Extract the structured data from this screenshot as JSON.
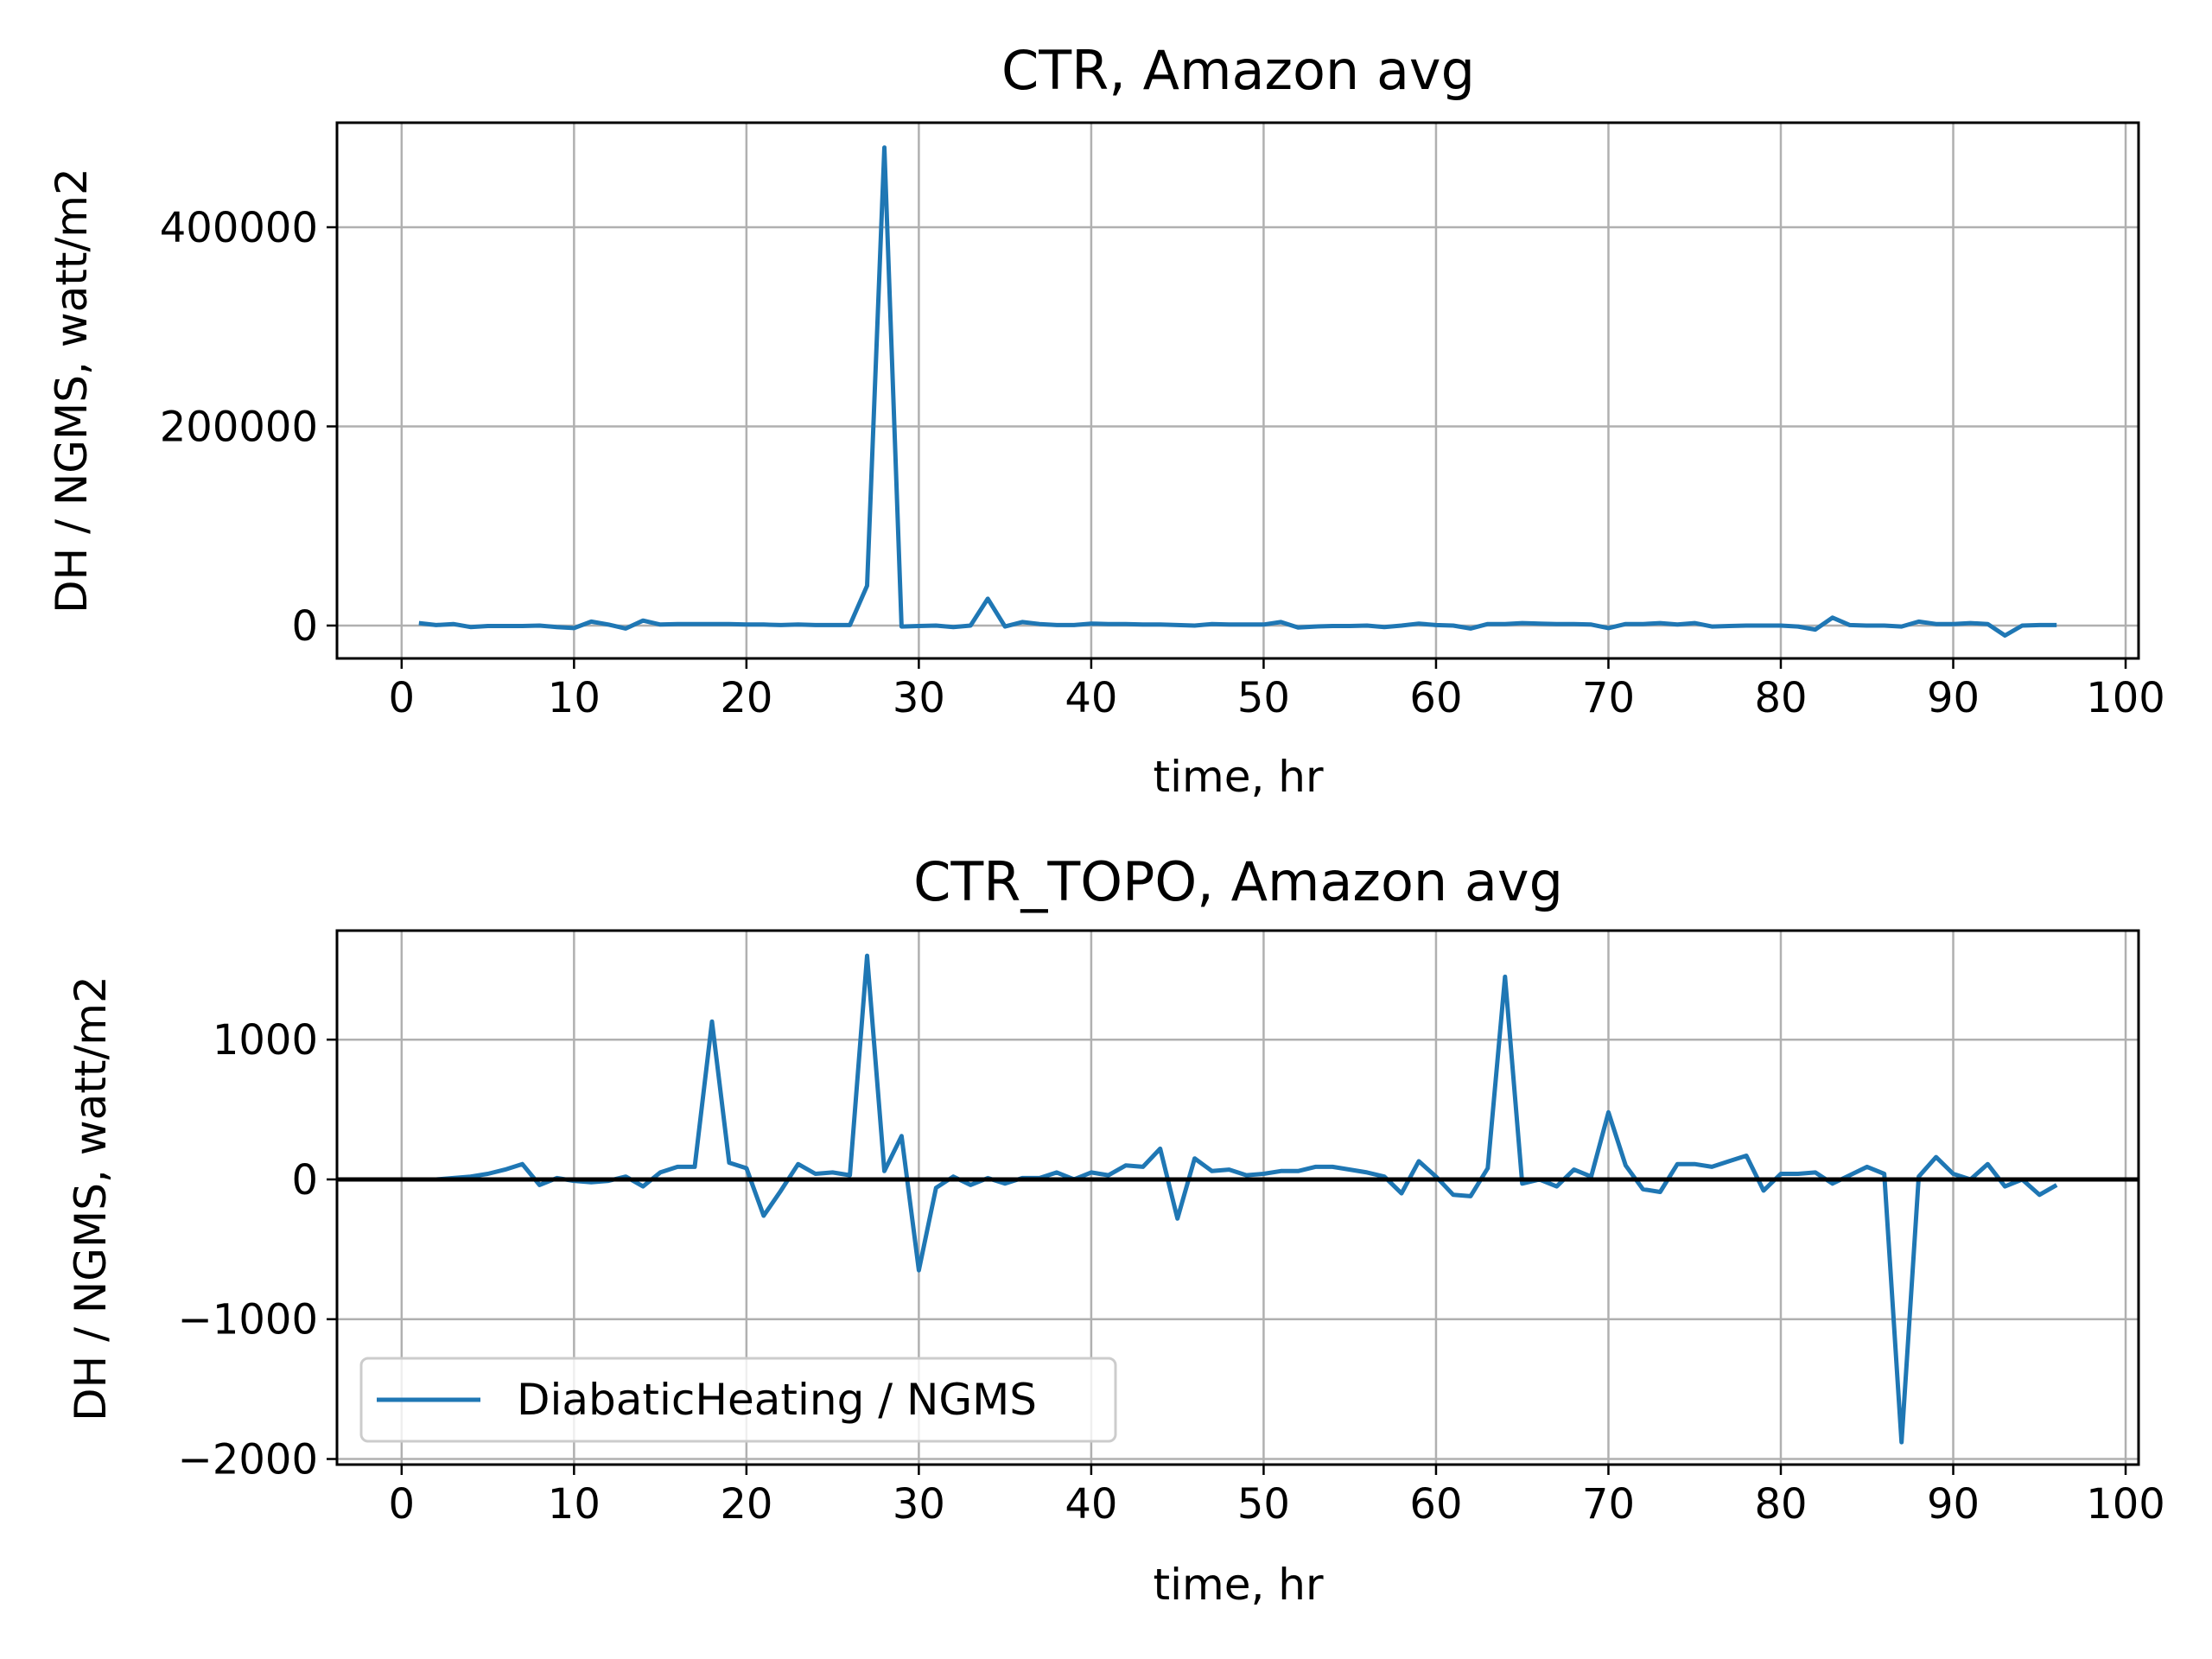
{
  "chart_data": [
    {
      "type": "line",
      "title": "CTR, Amazon avg",
      "xlabel": "time, hr",
      "ylabel": "DH / NGMS, watt/m2",
      "xlim": [
        -3.75,
        100.75
      ],
      "ylim": [
        -33000,
        505000
      ],
      "xticks": [
        0,
        10,
        20,
        30,
        40,
        50,
        60,
        70,
        80,
        90,
        100
      ],
      "xtick_labels": [
        "0",
        "10",
        "20",
        "30",
        "40",
        "50",
        "60",
        "70",
        "80",
        "90",
        "100"
      ],
      "yticks": [
        0,
        200000,
        400000
      ],
      "ytick_labels": [
        "0",
        "200000",
        "400000"
      ],
      "grid": true,
      "series": [
        {
          "color": "#1f77b4",
          "x": [
            1,
            2,
            3,
            4,
            5,
            6,
            7,
            8,
            9,
            10,
            11,
            12,
            13,
            14,
            15,
            16,
            17,
            18,
            19,
            20,
            21,
            22,
            23,
            24,
            25,
            26,
            27,
            28,
            29,
            30,
            31,
            32,
            33,
            34,
            35,
            36,
            37,
            38,
            39,
            40,
            41,
            42,
            43,
            44,
            45,
            46,
            47,
            48,
            49,
            50,
            51,
            52,
            53,
            54,
            55,
            56,
            57,
            58,
            59,
            60,
            61,
            62,
            63,
            64,
            65,
            66,
            67,
            68,
            69,
            70,
            71,
            72,
            73,
            74,
            75,
            76,
            77,
            78,
            79,
            80,
            81,
            82,
            83,
            84,
            85,
            86,
            87,
            88,
            89,
            90,
            91,
            92,
            93,
            94,
            95,
            96
          ],
          "values": [
            2500,
            500,
            1500,
            -1500,
            -500,
            -500,
            -500,
            0,
            -1500,
            -2500,
            4000,
            1000,
            -3000,
            5000,
            1000,
            1500,
            1500,
            1500,
            1500,
            1000,
            1000,
            500,
            1000,
            500,
            500,
            500,
            40000,
            480000,
            -1000,
            -500,
            0,
            -1500,
            0,
            27000,
            -1000,
            3500,
            1500,
            500,
            500,
            2000,
            1500,
            1500,
            1000,
            1000,
            500,
            0,
            1500,
            1000,
            1000,
            1000,
            3500,
            -2000,
            -1000,
            -500,
            -500,
            0,
            -1500,
            0,
            2000,
            500,
            0,
            -3000,
            1500,
            1500,
            2500,
            2000,
            1500,
            1500,
            1000,
            -2500,
            1500,
            1500,
            2500,
            1000,
            2500,
            -1000,
            -500,
            0,
            0,
            0,
            -1000,
            -4000,
            8000,
            500,
            0,
            0,
            -1000,
            4000,
            1500,
            1500,
            2500,
            1500,
            -10000,
            0,
            500,
            500
          ]
        }
      ]
    },
    {
      "type": "line",
      "title": "CTR_TOPO, Amazon avg",
      "xlabel": "time, hr",
      "ylabel": "DH / NGMS, watt/m2",
      "xlim": [
        -3.75,
        100.75
      ],
      "ylim": [
        -2040,
        1780
      ],
      "xticks": [
        0,
        10,
        20,
        30,
        40,
        50,
        60,
        70,
        80,
        90,
        100
      ],
      "xtick_labels": [
        "0",
        "10",
        "20",
        "30",
        "40",
        "50",
        "60",
        "70",
        "80",
        "90",
        "100"
      ],
      "yticks": [
        -2000,
        -1000,
        0,
        1000
      ],
      "ytick_labels": [
        "−2000",
        "−1000",
        "0",
        "1000"
      ],
      "grid": true,
      "hline": 0,
      "legend": {
        "placement": "lower-left",
        "entries": [
          "DiabaticHeating / NGMS"
        ]
      },
      "series": [
        {
          "name": "DiabaticHeating / NGMS",
          "color": "#1f77b4",
          "x": [
            1,
            2,
            3,
            4,
            5,
            6,
            7,
            8,
            9,
            10,
            11,
            12,
            13,
            14,
            15,
            16,
            17,
            18,
            19,
            20,
            21,
            22,
            23,
            24,
            25,
            26,
            27,
            28,
            29,
            30,
            31,
            32,
            33,
            34,
            35,
            36,
            37,
            38,
            39,
            40,
            41,
            42,
            43,
            44,
            45,
            46,
            47,
            48,
            49,
            50,
            51,
            52,
            53,
            54,
            55,
            56,
            57,
            58,
            59,
            60,
            61,
            62,
            63,
            64,
            65,
            66,
            67,
            68,
            69,
            70,
            71,
            72,
            73,
            74,
            75,
            76,
            77,
            78,
            79,
            80,
            81,
            82,
            83,
            84,
            85,
            86,
            87,
            88,
            89,
            90,
            91,
            92,
            93,
            94,
            95,
            96
          ],
          "values": [
            0,
            0,
            10,
            20,
            40,
            70,
            110,
            -40,
            10,
            -10,
            -20,
            -10,
            20,
            -50,
            50,
            90,
            90,
            1130,
            120,
            80,
            -260,
            -80,
            110,
            40,
            50,
            30,
            1600,
            60,
            310,
            -650,
            -60,
            20,
            -40,
            10,
            -30,
            10,
            10,
            50,
            0,
            50,
            30,
            100,
            90,
            220,
            -280,
            150,
            60,
            70,
            30,
            40,
            60,
            60,
            90,
            90,
            70,
            50,
            20,
            -100,
            130,
            20,
            -110,
            -120,
            80,
            1450,
            -30,
            0,
            -50,
            70,
            20,
            480,
            100,
            -70,
            -90,
            110,
            110,
            90,
            130,
            170,
            -80,
            40,
            40,
            50,
            -30,
            30,
            90,
            40,
            -1880,
            20,
            160,
            40,
            0,
            110,
            -50,
            0,
            -110,
            -40
          ]
        }
      ]
    }
  ]
}
